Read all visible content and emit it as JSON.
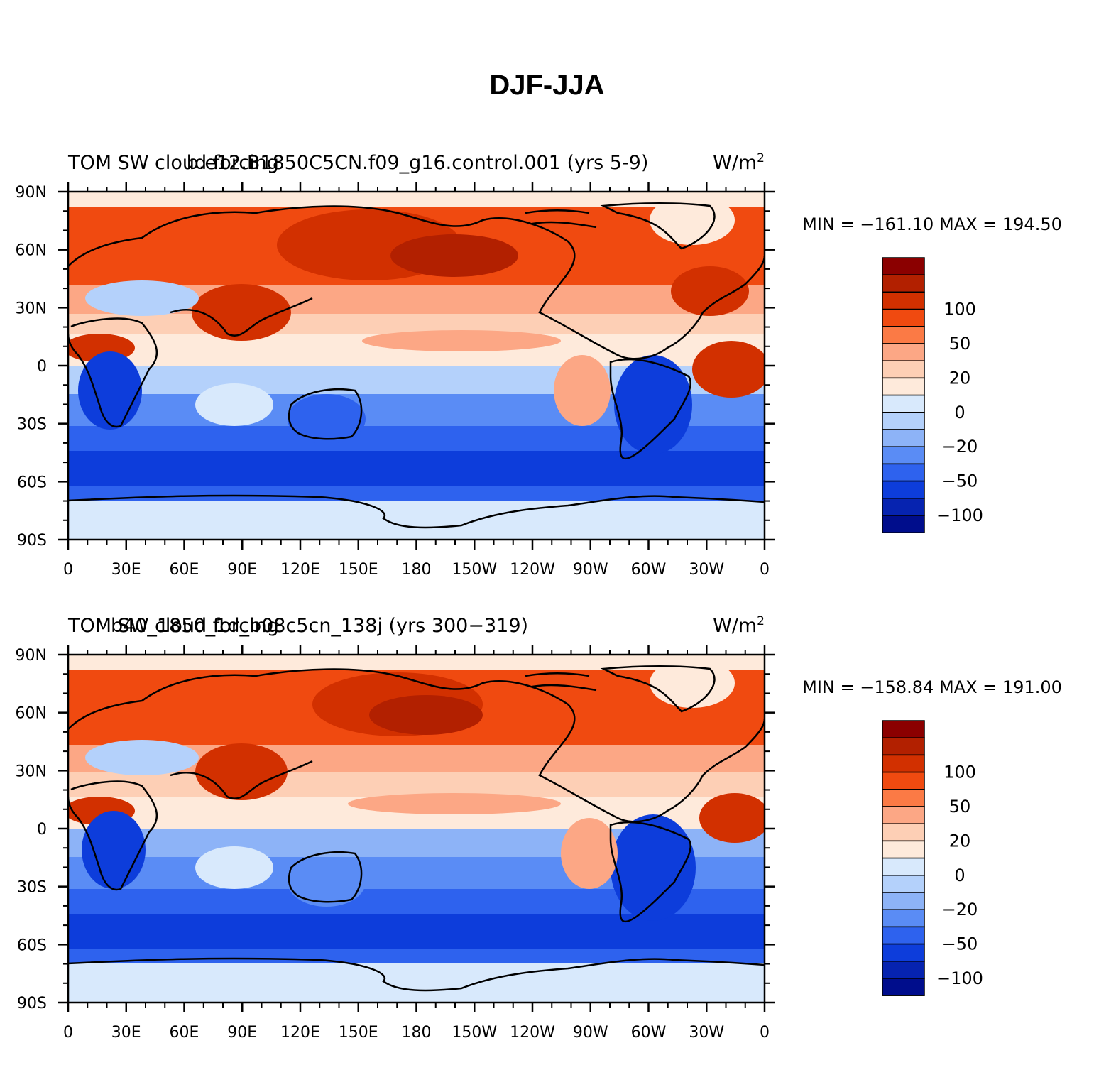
{
  "title": "DJF-JJA",
  "panels": [
    {
      "title_left": "TOM SW cloud forcing",
      "title_center": "b.e12.B1850C5CN.f09_g16.control.001 (yrs 5-9)",
      "units": "W/m",
      "units_sup": "2",
      "stats": "MIN = −161.10  MAX = 194.50"
    },
    {
      "title_left": "TOM SW cloud forcing",
      "title_center": "b40_1850_1d_b08c5cn_138j (yrs 300−319)",
      "units": "W/m",
      "units_sup": "2",
      "stats": "MIN = −158.84  MAX = 191.00"
    }
  ],
  "lat_ticks": [
    "90N",
    "60N",
    "30N",
    "0",
    "30S",
    "60S",
    "90S"
  ],
  "lon_ticks": [
    "0",
    "30E",
    "60E",
    "90E",
    "120E",
    "150E",
    "180",
    "150W",
    "120W",
    "90W",
    "60W",
    "30W",
    "0"
  ],
  "colorbar": {
    "colors": [
      "#8b0000",
      "#b22000",
      "#d23000",
      "#f04a10",
      "#fb7a45",
      "#fca785",
      "#fdcfb5",
      "#feeadb",
      "#d8e9fc",
      "#b4d1fb",
      "#8db3f7",
      "#5a8cf5",
      "#2e62ee",
      "#0d3ddb",
      "#0623b0",
      "#000d8c"
    ],
    "labels": [
      {
        "text": "100",
        "boundary": 3
      },
      {
        "text": "50",
        "boundary": 5
      },
      {
        "text": "20",
        "boundary": 7
      },
      {
        "text": "0",
        "boundary": 9
      },
      {
        "text": "−20",
        "boundary": 11
      },
      {
        "text": "−50",
        "boundary": 13
      },
      {
        "text": "−100",
        "boundary": 15
      }
    ]
  }
}
